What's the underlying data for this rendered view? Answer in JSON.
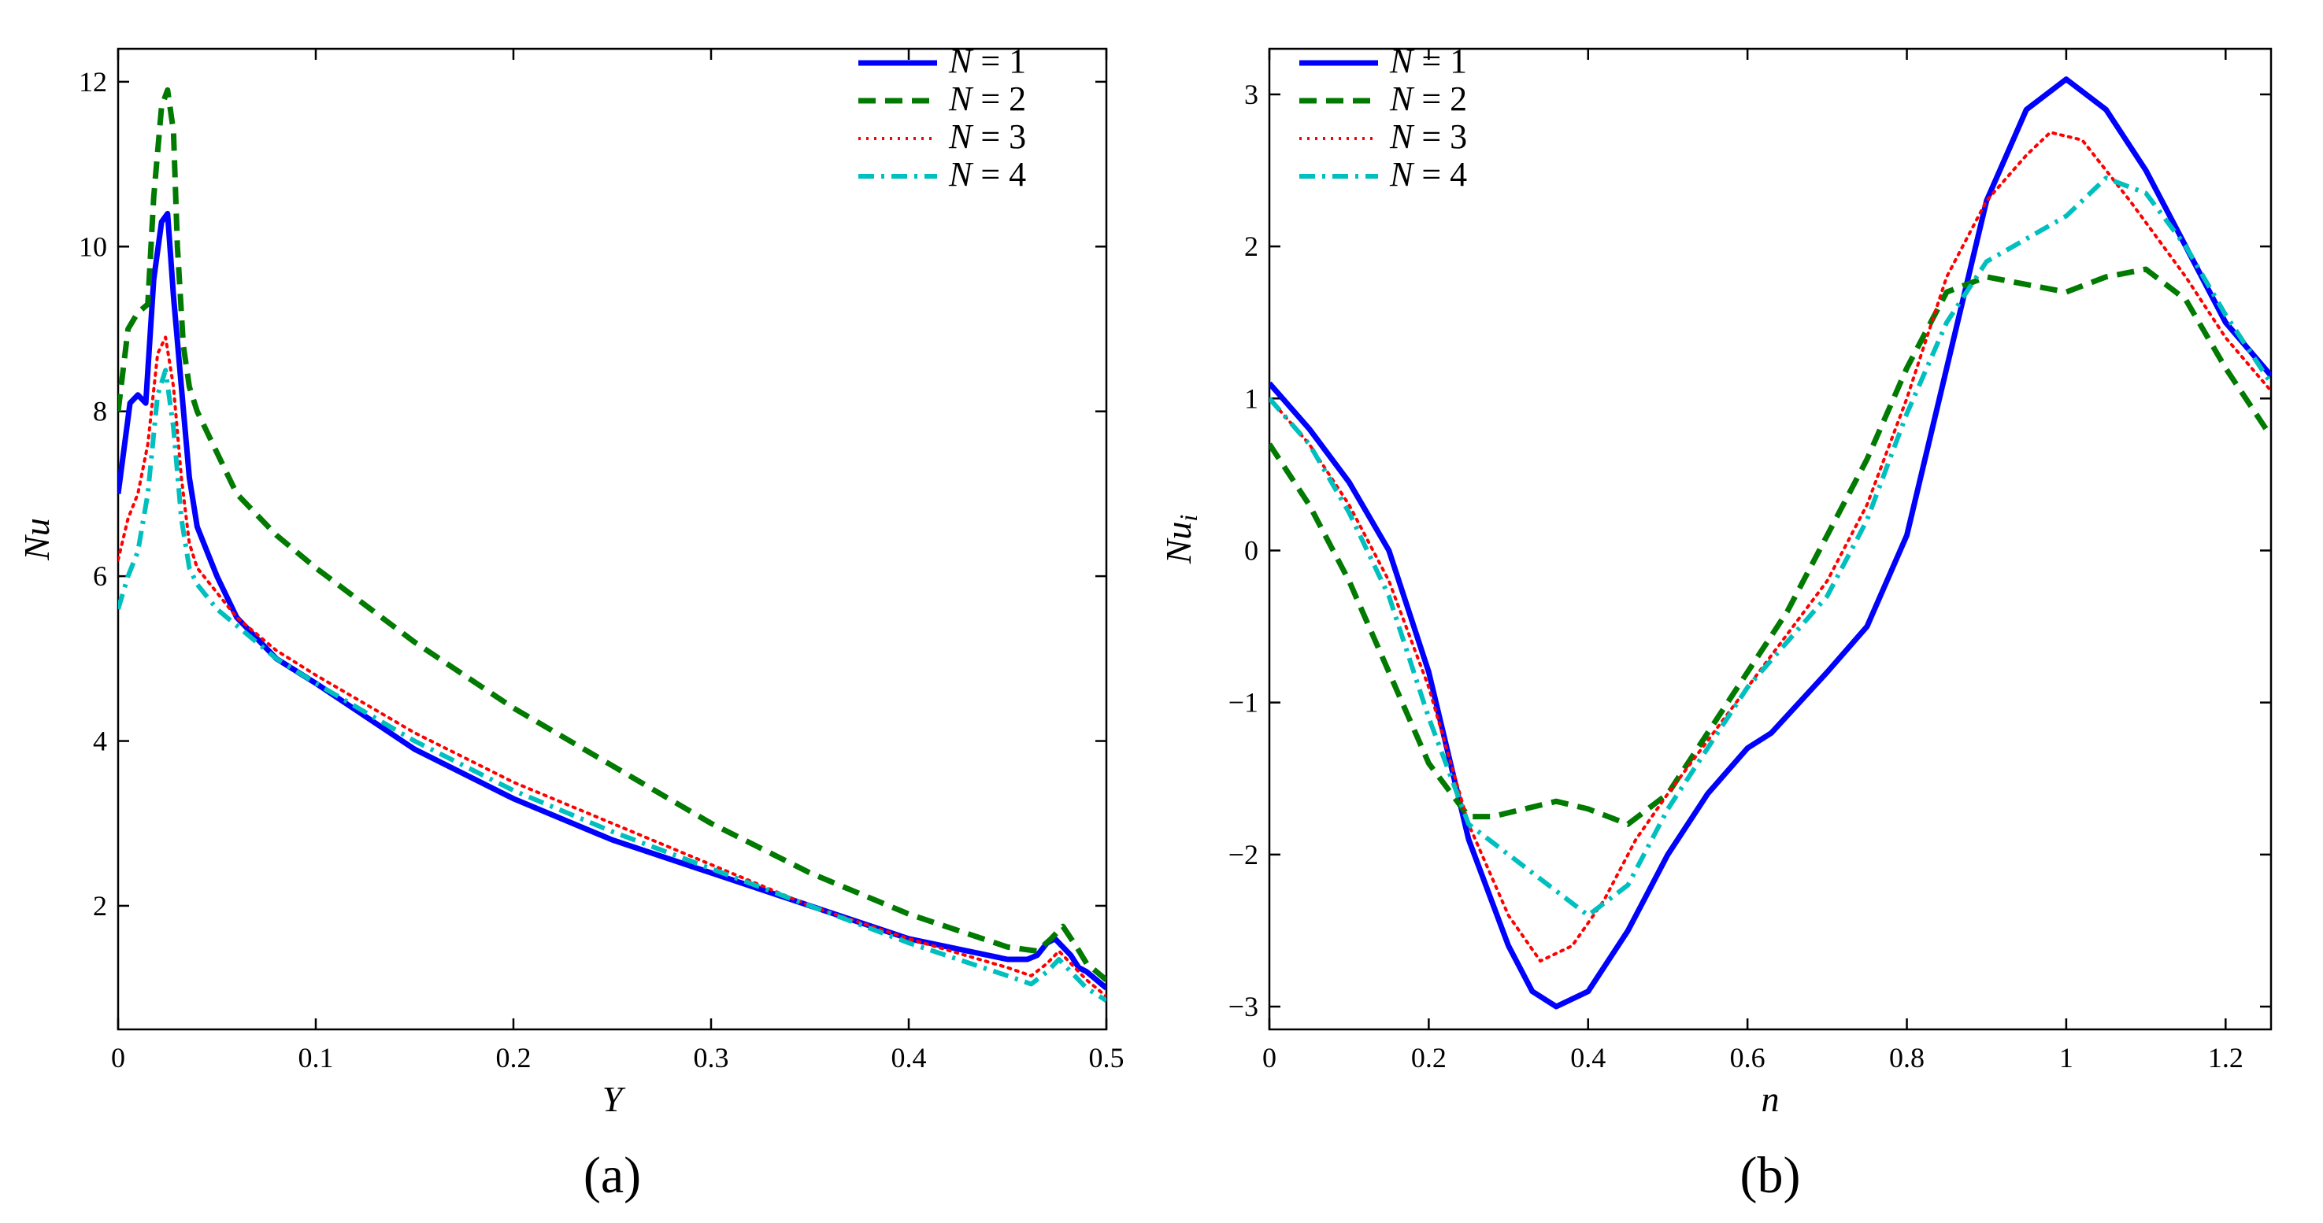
{
  "chart_data": [
    {
      "type": "line",
      "panel_label": "(a)",
      "xlabel": "Y",
      "ylabel": "Nu",
      "xlim": [
        0,
        0.5
      ],
      "ylim": [
        0.5,
        12.4
      ],
      "xticks": [
        0,
        0.1,
        0.2,
        0.3,
        0.4,
        0.5
      ],
      "xtick_labels": [
        "0",
        "0.1",
        "0.2",
        "0.3",
        "0.4",
        "0.5"
      ],
      "yticks": [
        2,
        4,
        6,
        8,
        10,
        12
      ],
      "ytick_labels": [
        "2",
        "4",
        "6",
        "8",
        "10",
        "12"
      ],
      "legend_position": "top-right",
      "series": [
        {
          "name": "N = 1",
          "color": "#0000ff",
          "style": "solid",
          "x": [
            0,
            0.006,
            0.01,
            0.014,
            0.018,
            0.022,
            0.025,
            0.028,
            0.032,
            0.036,
            0.04,
            0.045,
            0.05,
            0.06,
            0.08,
            0.1,
            0.15,
            0.2,
            0.25,
            0.3,
            0.35,
            0.4,
            0.45,
            0.46,
            0.465,
            0.47,
            0.474,
            0.478,
            0.482,
            0.486,
            0.49,
            0.495,
            0.5
          ],
          "y": [
            7.0,
            8.1,
            8.2,
            8.1,
            9.6,
            10.3,
            10.4,
            9.4,
            8.3,
            7.2,
            6.6,
            6.3,
            6.0,
            5.5,
            5.0,
            4.7,
            3.9,
            3.3,
            2.8,
            2.4,
            2.0,
            1.6,
            1.35,
            1.35,
            1.4,
            1.55,
            1.6,
            1.5,
            1.4,
            1.25,
            1.2,
            1.1,
            1.0
          ]
        },
        {
          "name": "N = 2",
          "color": "#007a00",
          "style": "dashed",
          "x": [
            0,
            0.005,
            0.01,
            0.015,
            0.018,
            0.022,
            0.025,
            0.028,
            0.03,
            0.033,
            0.036,
            0.04,
            0.05,
            0.06,
            0.08,
            0.1,
            0.15,
            0.2,
            0.25,
            0.3,
            0.35,
            0.4,
            0.45,
            0.465,
            0.472,
            0.478,
            0.485,
            0.49,
            0.5
          ],
          "y": [
            8.0,
            9.0,
            9.2,
            9.3,
            10.6,
            11.7,
            11.9,
            11.4,
            10.0,
            8.8,
            8.3,
            8.0,
            7.5,
            7.0,
            6.5,
            6.1,
            5.2,
            4.4,
            3.7,
            3.0,
            2.4,
            1.9,
            1.5,
            1.45,
            1.6,
            1.75,
            1.5,
            1.3,
            1.1
          ]
        },
        {
          "name": "N = 3",
          "color": "#ff0000",
          "style": "dotted",
          "x": [
            0,
            0.005,
            0.01,
            0.015,
            0.02,
            0.024,
            0.028,
            0.032,
            0.036,
            0.04,
            0.05,
            0.06,
            0.08,
            0.1,
            0.15,
            0.2,
            0.25,
            0.3,
            0.35,
            0.4,
            0.45,
            0.462,
            0.47,
            0.476,
            0.482,
            0.49,
            0.5
          ],
          "y": [
            6.2,
            6.7,
            7.0,
            7.6,
            8.7,
            8.9,
            8.3,
            7.2,
            6.4,
            6.1,
            5.8,
            5.5,
            5.1,
            4.8,
            4.1,
            3.5,
            3.0,
            2.5,
            2.0,
            1.6,
            1.25,
            1.15,
            1.3,
            1.45,
            1.3,
            1.1,
            0.9
          ]
        },
        {
          "name": "N = 4",
          "color": "#00bfbf",
          "style": "dashdot",
          "x": [
            0,
            0.005,
            0.01,
            0.015,
            0.02,
            0.024,
            0.028,
            0.032,
            0.036,
            0.04,
            0.05,
            0.06,
            0.08,
            0.1,
            0.15,
            0.2,
            0.25,
            0.3,
            0.35,
            0.4,
            0.45,
            0.462,
            0.47,
            0.476,
            0.482,
            0.49,
            0.5
          ],
          "y": [
            5.6,
            6.0,
            6.3,
            7.0,
            8.2,
            8.5,
            7.8,
            6.7,
            6.1,
            5.9,
            5.6,
            5.4,
            5.0,
            4.7,
            4.0,
            3.4,
            2.9,
            2.45,
            2.0,
            1.55,
            1.15,
            1.05,
            1.2,
            1.35,
            1.2,
            1.0,
            0.85
          ]
        }
      ]
    },
    {
      "type": "line",
      "panel_label": "(b)",
      "xlabel": "n",
      "ylabel": "Nu",
      "ylabel_subscript": "i",
      "xlim": [
        0,
        1.257
      ],
      "ylim": [
        -3.15,
        3.3
      ],
      "xticks": [
        0,
        0.2,
        0.4,
        0.6,
        0.8,
        1,
        1.2
      ],
      "xtick_labels": [
        "0",
        "0.2",
        "0.4",
        "0.6",
        "0.8",
        "1",
        "1.2"
      ],
      "yticks": [
        -3,
        -2,
        -1,
        0,
        1,
        2,
        3
      ],
      "ytick_labels": [
        "−3",
        "−2",
        "−1",
        "0",
        "1",
        "2",
        "3"
      ],
      "legend_position": "top-left",
      "series": [
        {
          "name": "N = 1",
          "color": "#0000ff",
          "style": "solid",
          "x": [
            0,
            0.05,
            0.1,
            0.15,
            0.2,
            0.25,
            0.3,
            0.33,
            0.36,
            0.4,
            0.45,
            0.5,
            0.55,
            0.6,
            0.63,
            0.7,
            0.75,
            0.8,
            0.85,
            0.9,
            0.95,
            1.0,
            1.05,
            1.1,
            1.15,
            1.2,
            1.257
          ],
          "y": [
            1.1,
            0.8,
            0.45,
            0.0,
            -0.8,
            -1.9,
            -2.6,
            -2.9,
            -3.0,
            -2.9,
            -2.5,
            -2.0,
            -1.6,
            -1.3,
            -1.2,
            -0.8,
            -0.5,
            0.1,
            1.2,
            2.3,
            2.9,
            3.1,
            2.9,
            2.5,
            2.0,
            1.5,
            1.15
          ]
        },
        {
          "name": "N = 2",
          "color": "#007a00",
          "style": "dashed",
          "x": [
            0,
            0.05,
            0.1,
            0.15,
            0.2,
            0.25,
            0.28,
            0.32,
            0.36,
            0.4,
            0.45,
            0.5,
            0.55,
            0.6,
            0.65,
            0.7,
            0.75,
            0.8,
            0.85,
            0.9,
            0.95,
            1.0,
            1.05,
            1.1,
            1.15,
            1.2,
            1.257
          ],
          "y": [
            0.7,
            0.3,
            -0.2,
            -0.8,
            -1.4,
            -1.75,
            -1.75,
            -1.7,
            -1.65,
            -1.7,
            -1.8,
            -1.6,
            -1.2,
            -0.8,
            -0.4,
            0.1,
            0.6,
            1.2,
            1.7,
            1.8,
            1.75,
            1.7,
            1.8,
            1.85,
            1.65,
            1.2,
            0.75
          ]
        },
        {
          "name": "N = 3",
          "color": "#ff0000",
          "style": "dotted",
          "x": [
            0,
            0.05,
            0.1,
            0.15,
            0.2,
            0.25,
            0.3,
            0.34,
            0.38,
            0.42,
            0.46,
            0.5,
            0.55,
            0.6,
            0.65,
            0.7,
            0.75,
            0.8,
            0.85,
            0.9,
            0.95,
            0.98,
            1.02,
            1.08,
            1.15,
            1.2,
            1.257
          ],
          "y": [
            1.0,
            0.7,
            0.3,
            -0.2,
            -0.9,
            -1.8,
            -2.4,
            -2.7,
            -2.6,
            -2.3,
            -1.9,
            -1.6,
            -1.25,
            -0.9,
            -0.55,
            -0.2,
            0.3,
            1.0,
            1.8,
            2.3,
            2.6,
            2.75,
            2.7,
            2.3,
            1.8,
            1.4,
            1.05
          ]
        },
        {
          "name": "N = 4",
          "color": "#00bfbf",
          "style": "dashdot",
          "x": [
            0,
            0.05,
            0.1,
            0.15,
            0.2,
            0.25,
            0.3,
            0.35,
            0.4,
            0.45,
            0.5,
            0.55,
            0.6,
            0.65,
            0.7,
            0.75,
            0.8,
            0.85,
            0.9,
            0.95,
            1.0,
            1.05,
            1.1,
            1.15,
            1.2,
            1.257
          ],
          "y": [
            1.0,
            0.7,
            0.25,
            -0.3,
            -1.1,
            -1.8,
            -2.0,
            -2.2,
            -2.4,
            -2.2,
            -1.7,
            -1.3,
            -0.9,
            -0.6,
            -0.3,
            0.2,
            0.9,
            1.5,
            1.9,
            2.05,
            2.2,
            2.45,
            2.35,
            2.0,
            1.55,
            1.1
          ]
        }
      ]
    }
  ]
}
